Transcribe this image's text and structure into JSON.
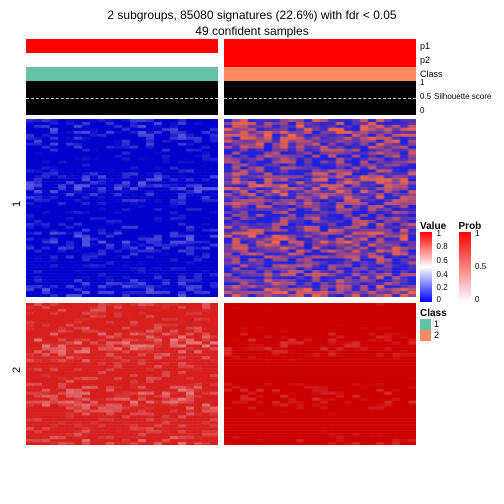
{
  "title_line1": "2 subgroups, 85080 signatures (22.6%) with fdr < 0.05",
  "title_line2": "49 confident samples",
  "annotations": {
    "p1": {
      "label": "p1",
      "left_color": "#ff0000",
      "right_color": "#ff0000",
      "height": 14
    },
    "p2": {
      "label": "p2",
      "left_color": "#ffffff",
      "right_color": "#ff0000",
      "height": 14
    },
    "class": {
      "label": "Class",
      "left_color": "#66c2a5",
      "right_color": "#fc8d62",
      "height": 14
    }
  },
  "silhouette": {
    "label": "Silhouette score",
    "bg": "#000000",
    "dash_color": "#cccccc",
    "ticks": [
      "1",
      "0.5",
      "0"
    ],
    "dash_pos": 0.5
  },
  "heatmap": {
    "row_groups": [
      "1",
      "2"
    ],
    "group1_height": 178,
    "group2_height": 142,
    "cols_per_half": 24,
    "rows_group1": 60,
    "rows_group2": 48,
    "panels": {
      "g1_left": {
        "low": "#0000cc",
        "high": "#ffffff",
        "bias": -0.6,
        "noise": 0.35
      },
      "g1_right": {
        "low": "#2020dd",
        "high": "#ff6a3c",
        "bias": -0.15,
        "noise": 0.5
      },
      "g2_left": {
        "low": "#ffffff",
        "high": "#d62020",
        "bias": 0.55,
        "noise": 0.35
      },
      "g2_right": {
        "low": "#ffffff",
        "high": "#cc0000",
        "bias": 0.7,
        "noise": 0.3
      }
    }
  },
  "legends": {
    "value": {
      "title": "Value",
      "colors": [
        "#ff0000",
        "#ffffff",
        "#0000ff"
      ],
      "ticks": [
        "1",
        "0.8",
        "0.6",
        "0.4",
        "0.2",
        "0"
      ]
    },
    "prob": {
      "title": "Prob",
      "colors": [
        "#ff0000",
        "#ffffff"
      ],
      "ticks": [
        "1",
        "0.5",
        "0"
      ]
    },
    "class": {
      "title": "Class",
      "items": [
        {
          "label": "1",
          "color": "#66c2a5"
        },
        {
          "label": "2",
          "color": "#fc8d62"
        }
      ]
    }
  },
  "layout": {
    "gap": 6,
    "background": "#ffffff"
  }
}
